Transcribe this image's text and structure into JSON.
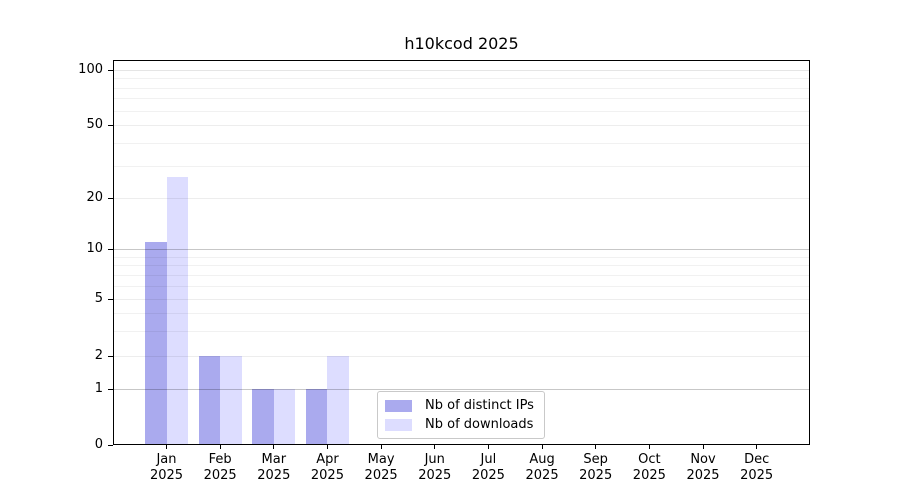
{
  "chart_data": {
    "type": "bar",
    "title": "h10kcod 2025",
    "categories": [
      "Jan",
      "Feb",
      "Mar",
      "Apr",
      "May",
      "Jun",
      "Jul",
      "Aug",
      "Sep",
      "Oct",
      "Nov",
      "Dec"
    ],
    "year_label": "2025",
    "series": [
      {
        "name": "Nb of distinct IPs",
        "color": "#aaaaee",
        "values": [
          11,
          2,
          1,
          1,
          0,
          0,
          0,
          0,
          0,
          0,
          0,
          0
        ]
      },
      {
        "name": "Nb of downloads",
        "color": "#ddddff",
        "values": [
          26,
          2,
          1,
          2,
          0,
          0,
          0,
          0,
          0,
          0,
          0,
          0
        ]
      }
    ],
    "yticks": [
      0,
      1,
      2,
      5,
      10,
      20,
      50,
      100
    ],
    "ytick_labels": [
      "0",
      "1",
      "2",
      "5",
      "10",
      "20",
      "50",
      "100"
    ],
    "y_minor_ticks": [
      3,
      4,
      6,
      7,
      8,
      9,
      30,
      40,
      60,
      70,
      80,
      90
    ],
    "y_scale": "log-like with linear 0-1 segment",
    "ylim": [
      0,
      100
    ],
    "xlabel": "",
    "ylabel": "",
    "grid": "horizontal",
    "legend_position": "lower center"
  }
}
